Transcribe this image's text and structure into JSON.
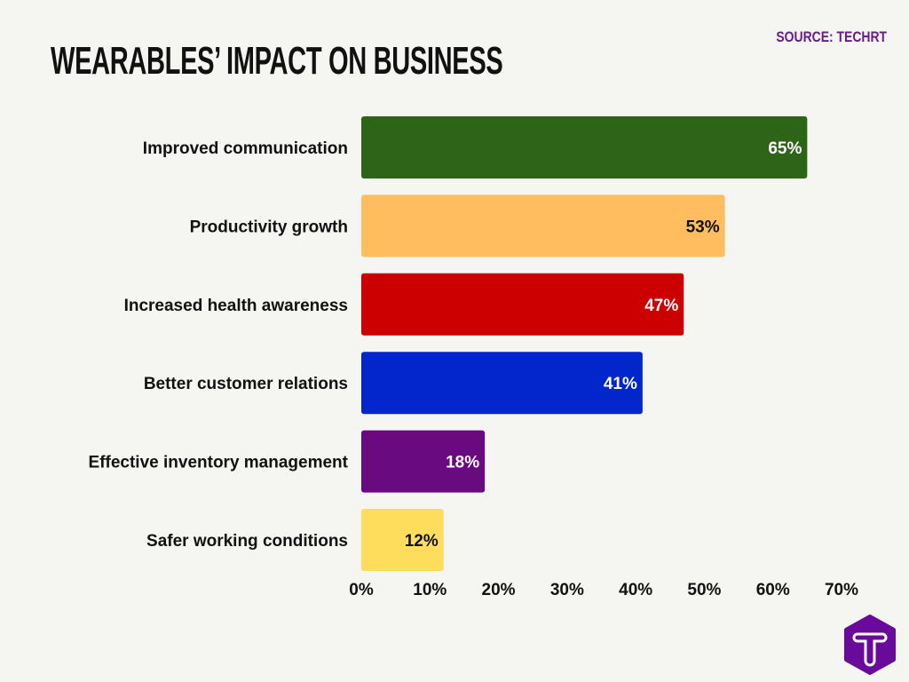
{
  "chart_data": {
    "type": "bar",
    "orientation": "horizontal",
    "title": "WEARABLES’ IMPACT ON BUSINESS",
    "source": "SOURCE: TECHRT",
    "categories": [
      "Improved communication",
      "Productivity growth",
      "Increased health awareness",
      "Better customer relations",
      "Effective inventory management",
      "Safer working conditions"
    ],
    "values": [
      65,
      53,
      47,
      41,
      18,
      12
    ],
    "data_labels": [
      "65%",
      "53%",
      "47%",
      "41%",
      "18%",
      "12%"
    ],
    "colors": [
      "#2e6417",
      "#ffbd5e",
      "#cc0000",
      "#0026cc",
      "#6a0a80",
      "#ffdd5c"
    ],
    "label_colors": [
      "#ffffff",
      "#111111",
      "#ffffff",
      "#ffffff",
      "#ffffff",
      "#111111"
    ],
    "xlim": [
      0,
      70
    ],
    "xticks": [
      0,
      10,
      20,
      30,
      40,
      50,
      60,
      70
    ],
    "xtick_labels": [
      "0%",
      "10%",
      "20%",
      "30%",
      "40%",
      "50%",
      "60%",
      "70%"
    ],
    "grid": false,
    "legend": "none"
  },
  "logo": {
    "name": "techrt-logo",
    "color": "#6a0a9a",
    "letter": "T"
  }
}
